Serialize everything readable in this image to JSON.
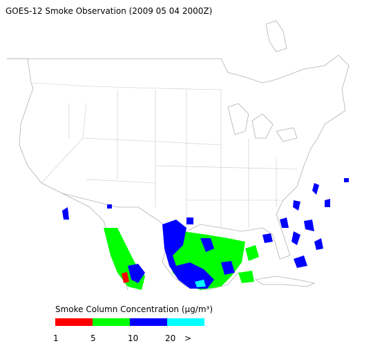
{
  "title": "GOES-12 Smoke Observation (2009 05 04  2000Z)",
  "legend": {
    "title": "Smoke Column Concentration (μg/m³)",
    "labels": [
      "1",
      "5",
      "10",
      "20",
      ">"
    ],
    "colors": [
      "#ff0000",
      "#00ff00",
      "#0000ff",
      "#00ffff"
    ]
  }
}
